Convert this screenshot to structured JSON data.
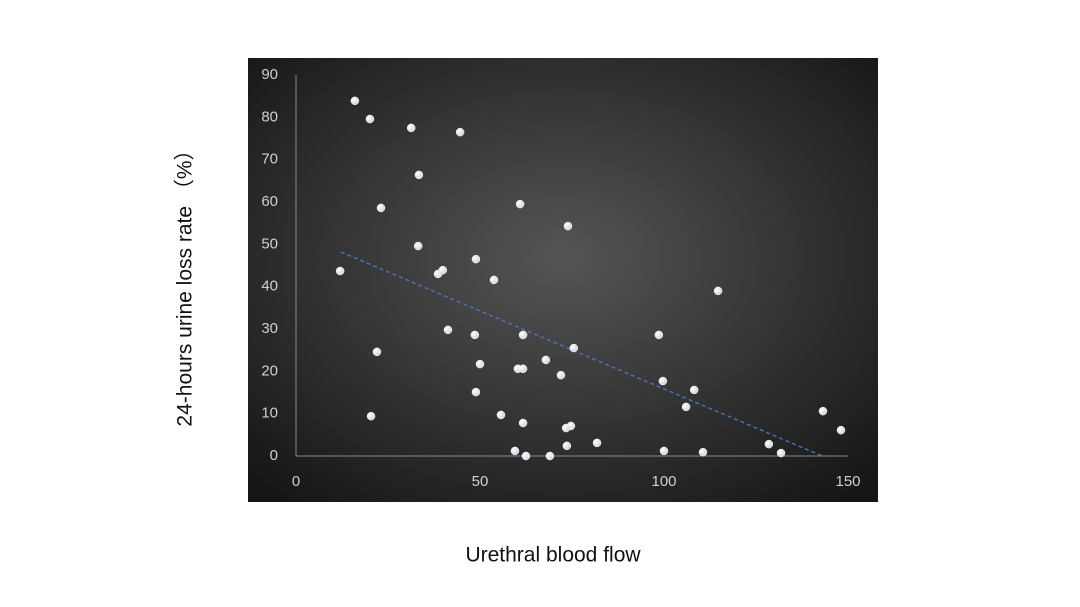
{
  "chart_data": {
    "type": "scatter",
    "x_label": "Urethral blood flow",
    "y_label": "24-hours urine loss rate （%）",
    "x": [
      16.0,
      20.1,
      31.3,
      44.6,
      33.4,
      23.1,
      60.9,
      73.9,
      33.2,
      48.9,
      39.9,
      38.6,
      12.0,
      53.8,
      114.7,
      41.3,
      48.6,
      61.7,
      98.6,
      22.0,
      75.5,
      67.9,
      50.0,
      60.3,
      61.7,
      72.0,
      99.7,
      108.2,
      48.9,
      106.0,
      143.2,
      55.7,
      20.4,
      61.7,
      74.7,
      73.4,
      148.1,
      81.8,
      73.6,
      128.5,
      59.5,
      100.0,
      110.6,
      131.8,
      62.5,
      69.0
    ],
    "values": [
      83.9,
      79.6,
      77.5,
      76.5,
      66.4,
      58.6,
      59.5,
      54.3,
      49.6,
      46.5,
      43.9,
      43.0,
      43.7,
      41.6,
      39.0,
      29.8,
      28.6,
      28.6,
      28.6,
      24.6,
      25.5,
      22.7,
      21.7,
      20.6,
      20.6,
      19.1,
      17.7,
      15.6,
      15.1,
      11.6,
      10.6,
      9.7,
      9.4,
      7.8,
      7.1,
      6.6,
      6.1,
      3.1,
      2.4,
      2.8,
      1.2,
      1.2,
      0.9,
      0.7,
      0,
      0
    ],
    "color": "#ffffff",
    "trend": {
      "x": [
        12.2,
        143
      ],
      "y": [
        48.2,
        0
      ],
      "color": "#4a78c8"
    },
    "xlim": [
      0,
      150
    ],
    "xticks": [
      0,
      50,
      100,
      150
    ],
    "ylim": [
      0,
      90
    ],
    "yticks": [
      0,
      10,
      20,
      30,
      40,
      50,
      60,
      70,
      80,
      90
    ]
  }
}
